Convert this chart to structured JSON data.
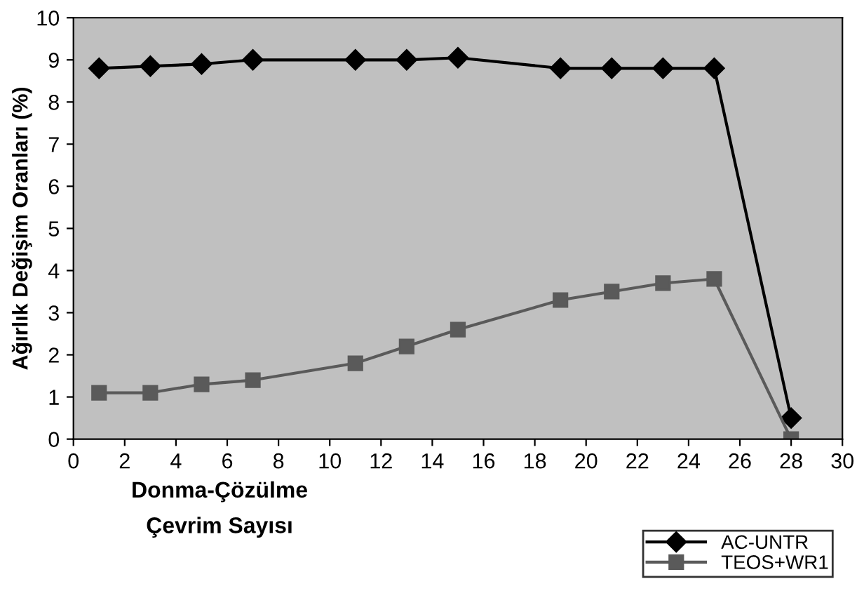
{
  "chart_data": {
    "type": "line",
    "xlabel": "Donma-Çözülme\nÇevrim Sayısı",
    "ylabel": "Ağırlık Değişim Oranları (%)",
    "x": [
      1,
      3,
      5,
      7,
      11,
      13,
      15,
      19,
      21,
      23,
      25,
      28
    ],
    "series": [
      {
        "name": "AC-UNTR",
        "color": "#000000",
        "marker": "diamond",
        "values": [
          8.8,
          8.85,
          8.9,
          9.0,
          9.0,
          9.0,
          9.05,
          8.8,
          8.8,
          8.8,
          8.8,
          0.5
        ]
      },
      {
        "name": "TEOS+WR1",
        "color": "#5a5a5a",
        "marker": "square",
        "values": [
          1.1,
          1.1,
          1.3,
          1.4,
          1.8,
          2.2,
          2.6,
          3.3,
          3.5,
          3.7,
          3.8,
          0
        ]
      }
    ],
    "xlim": [
      0,
      30
    ],
    "xticks": [
      0,
      2,
      4,
      6,
      8,
      10,
      12,
      14,
      16,
      18,
      20,
      22,
      24,
      26,
      28,
      30
    ],
    "ylim": [
      0,
      10
    ],
    "yticks": [
      0,
      1,
      2,
      3,
      4,
      5,
      6,
      7,
      8,
      9,
      10
    ],
    "grid": false,
    "legend": "bottom right"
  }
}
